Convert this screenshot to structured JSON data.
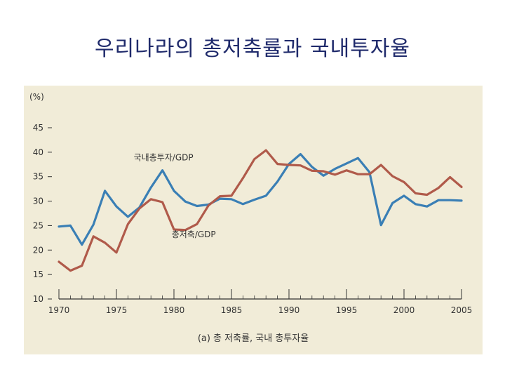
{
  "slide": {
    "title": "우리나라의 총저축률과 국내투자율"
  },
  "colors": {
    "panel_bg": "#f1ecd8",
    "investment": "#3a7fb5",
    "savings": "#b05a4a",
    "title": "#1f2a6b",
    "axis": "#333333"
  },
  "chart_data": {
    "type": "line",
    "title": "우리나라의 총저축률과 국내투자율",
    "caption": "(a) 총 저축률, 국내 총투자율",
    "ylabel": "(%)",
    "xlabel": "",
    "xlim": [
      1970,
      2005
    ],
    "ylim": [
      10,
      45
    ],
    "xticks": [
      1970,
      1975,
      1980,
      1985,
      1990,
      1995,
      2000,
      2005
    ],
    "yticks": [
      10,
      15,
      20,
      25,
      30,
      35,
      40,
      45
    ],
    "x": [
      1970,
      1971,
      1972,
      1973,
      1974,
      1975,
      1976,
      1977,
      1978,
      1979,
      1980,
      1981,
      1982,
      1983,
      1984,
      1985,
      1986,
      1987,
      1988,
      1989,
      1990,
      1991,
      1992,
      1993,
      1994,
      1995,
      1996,
      1997,
      1998,
      1999,
      2000,
      2001,
      2002,
      2003,
      2004,
      2005
    ],
    "series": [
      {
        "name": "국내총투자/GDP",
        "color": "#3a7fb5",
        "values": [
          24.8,
          25.0,
          21.1,
          25.2,
          32.1,
          28.9,
          26.8,
          28.7,
          32.8,
          36.3,
          32.1,
          29.9,
          29.0,
          29.3,
          30.5,
          30.4,
          29.4,
          30.3,
          31.1,
          34.0,
          37.6,
          39.6,
          37.0,
          35.2,
          36.6,
          37.7,
          38.8,
          35.9,
          25.1,
          29.6,
          31.1,
          29.4,
          28.9,
          30.2,
          30.2,
          30.1
        ]
      },
      {
        "name": "총저축/GDP",
        "color": "#b05a4a",
        "values": [
          17.6,
          15.8,
          16.8,
          22.8,
          21.5,
          19.5,
          25.3,
          28.5,
          30.4,
          29.8,
          24.2,
          24.1,
          25.3,
          29.1,
          31.0,
          31.1,
          34.7,
          38.6,
          40.4,
          37.6,
          37.4,
          37.3,
          36.2,
          36.1,
          35.4,
          36.3,
          35.5,
          35.5,
          37.4,
          35.1,
          33.9,
          31.6,
          31.3,
          32.7,
          34.9,
          32.9
        ]
      }
    ],
    "annotations": [
      {
        "text": "국내총투자/GDP",
        "series": 0
      },
      {
        "text": "총저축/GDP",
        "series": 1
      }
    ]
  }
}
